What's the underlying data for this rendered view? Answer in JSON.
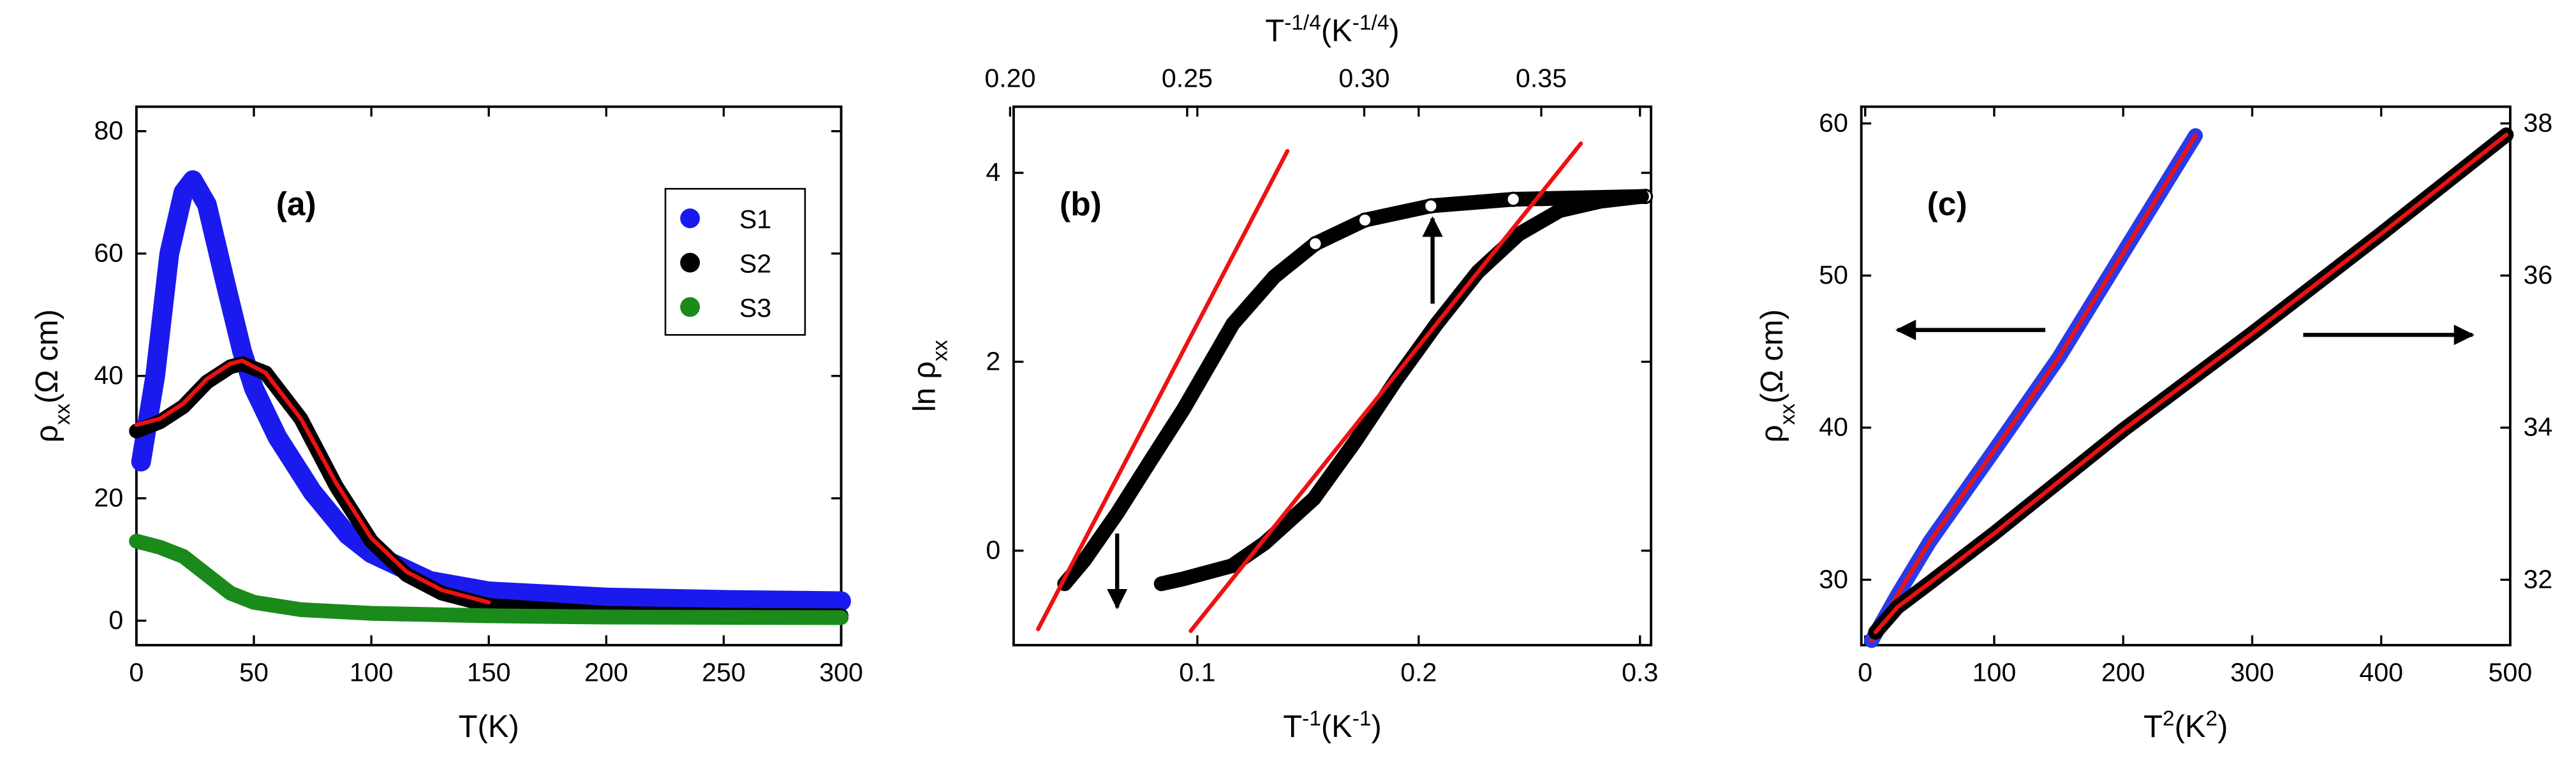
{
  "chart_data": [
    {
      "type": "line",
      "annotation": "(a)",
      "legend": "upper right",
      "xlabel": [
        {
          "text": "T(K)"
        }
      ],
      "ylabel": [
        {
          "text": "ρ"
        },
        {
          "text": "xx",
          "sub": true
        },
        {
          "text": "(Ω cm)"
        }
      ],
      "xlim": [
        0,
        300
      ],
      "ylim": [
        -4,
        84
      ],
      "xticks": [
        0,
        50,
        100,
        150,
        200,
        250,
        300
      ],
      "yticks": [
        0,
        20,
        40,
        60,
        80
      ],
      "series": [
        {
          "name": "S1",
          "color": "#1a1aee",
          "style": "filled",
          "x": [
            2,
            8,
            14,
            20,
            24,
            30,
            38,
            45,
            50,
            60,
            75,
            90,
            100,
            125,
            150,
            200,
            250,
            300
          ],
          "values": [
            26,
            40,
            60,
            70,
            72,
            68,
            55,
            44,
            38,
            30,
            21,
            14,
            11,
            6.5,
            4.8,
            3.8,
            3.4,
            3.2
          ]
        },
        {
          "name": "S2",
          "color": "#000000",
          "style": "filled",
          "x": [
            0,
            10,
            20,
            30,
            40,
            45,
            55,
            70,
            85,
            100,
            115,
            130,
            150,
            200,
            250,
            300
          ],
          "values": [
            31,
            32.5,
            35,
            39,
            41.5,
            42,
            40.5,
            33,
            22,
            13,
            7.5,
            4.5,
            2.5,
            1.2,
            0.9,
            0.8
          ]
        },
        {
          "name": "S3",
          "color": "#1a8a1a",
          "style": "filled",
          "x": [
            0,
            10,
            20,
            30,
            40,
            50,
            70,
            100,
            150,
            200,
            300
          ],
          "values": [
            13,
            12,
            10.5,
            7.5,
            4.5,
            3,
            1.8,
            1.2,
            0.8,
            0.6,
            0.5
          ]
        },
        {
          "color": "#ee1111",
          "style": "fit",
          "x": [
            0,
            10,
            20,
            30,
            40,
            45,
            55,
            70,
            85,
            100,
            115,
            130,
            150
          ],
          "values": [
            32,
            33,
            35.5,
            39.5,
            42,
            42.5,
            40.5,
            33,
            22.5,
            13.5,
            8,
            5,
            3
          ]
        }
      ]
    },
    {
      "type": "line",
      "annotation": "(b)",
      "xlabel": [
        {
          "text": "T"
        },
        {
          "text": "-1",
          "sup": true
        },
        {
          "text": "(K"
        },
        {
          "text": "-1",
          "sup": true
        },
        {
          "text": ")"
        }
      ],
      "x2label": [
        {
          "text": "T"
        },
        {
          "text": "-1/4",
          "sup": true
        },
        {
          "text": "(K"
        },
        {
          "text": "-1/4",
          "sup": true
        },
        {
          "text": ")"
        }
      ],
      "ylabel": [
        {
          "text": "ln ρ"
        },
        {
          "text": "xx",
          "sub": true
        }
      ],
      "xlim": [
        0.017,
        0.305
      ],
      "x2lim": [
        0.201,
        0.381
      ],
      "ylim": [
        -1,
        4.7
      ],
      "xticks": [
        0.1,
        0.2,
        0.3
      ],
      "x2ticks": [
        {
          "value": 0.2,
          "label": "0.20"
        },
        {
          "value": 0.25,
          "label": "0.25"
        },
        {
          "value": 0.3,
          "label": "0.30"
        },
        {
          "value": 0.35,
          "label": "0.35"
        }
      ],
      "yticks": [
        0,
        2,
        4
      ],
      "series": [
        {
          "color": "#000000",
          "style": "open",
          "xaxis": "x2",
          "x": [
            0.2154,
            0.221,
            0.2303,
            0.2396,
            0.249,
            0.2629,
            0.2746,
            0.2862,
            0.3002,
            0.3188,
            0.3421,
            0.3794
          ],
          "values": [
            -0.35,
            -0.1,
            0.4,
            0.95,
            1.5,
            2.4,
            2.9,
            3.25,
            3.5,
            3.65,
            3.72,
            3.75
          ]
        },
        {
          "color": "#000000",
          "style": "filled",
          "x": [
            0.0837,
            0.0933,
            0.1156,
            0.1304,
            0.1526,
            0.1711,
            0.1896,
            0.2081,
            0.2267,
            0.2452,
            0.2637,
            0.2822,
            0.3007
          ],
          "values": [
            -0.35,
            -0.3,
            -0.16,
            0.08,
            0.55,
            1.15,
            1.8,
            2.4,
            2.95,
            3.35,
            3.6,
            3.7,
            3.75
          ]
        },
        {
          "color": "#ee1111",
          "style": "fit",
          "xaxis": "x2",
          "x": [
            0.2079,
            0.2783
          ],
          "values": [
            -0.83,
            4.23
          ]
        },
        {
          "color": "#ee1111",
          "style": "fit",
          "x": [
            0.097,
            0.2733
          ],
          "values": [
            -0.85,
            4.31
          ]
        }
      ]
    },
    {
      "type": "line",
      "annotation": "(c)",
      "xlabel": [
        {
          "text": "T"
        },
        {
          "text": "2",
          "sup": true
        },
        {
          "text": "(K"
        },
        {
          "text": "2",
          "sup": true
        },
        {
          "text": ")"
        }
      ],
      "ylabel": [
        {
          "text": "ρ"
        },
        {
          "text": "xx",
          "sub": true
        },
        {
          "text": "(Ω cm)"
        }
      ],
      "xlim": [
        -3,
        500
      ],
      "ylim": [
        25.7,
        61.1
      ],
      "y2lim": [
        31.14,
        38.22
      ],
      "xticks": [
        0,
        100,
        200,
        300,
        400,
        500
      ],
      "yticks": [
        30,
        40,
        50,
        60
      ],
      "y2ticks": [
        32,
        34,
        36,
        38
      ],
      "series": [
        {
          "color": "#2a3ae8",
          "style": "filled",
          "x": [
            5,
            25,
            50,
            100,
            150,
            200,
            256
          ],
          "values": [
            26,
            29,
            32.5,
            38.5,
            44.6,
            51.5,
            59.2
          ]
        },
        {
          "color": "#ee1111",
          "style": "fit",
          "x": [
            5,
            25,
            50,
            100,
            150,
            200,
            256
          ],
          "values": [
            26,
            29,
            32.5,
            38.5,
            44.6,
            51.5,
            59.2
          ]
        },
        {
          "color": "#000000",
          "style": "filled",
          "axis": "y2",
          "x": [
            8,
            25,
            50,
            100,
            200,
            300,
            400,
            497
          ],
          "values": [
            31.31,
            31.64,
            31.96,
            32.61,
            33.97,
            35.24,
            36.55,
            37.85
          ]
        },
        {
          "color": "#ee1111",
          "style": "fit",
          "axis": "y2",
          "x": [
            8,
            25,
            50,
            100,
            200,
            300,
            400,
            497
          ],
          "values": [
            31.31,
            31.64,
            31.96,
            32.61,
            33.97,
            35.24,
            36.55,
            37.85
          ]
        }
      ]
    }
  ]
}
